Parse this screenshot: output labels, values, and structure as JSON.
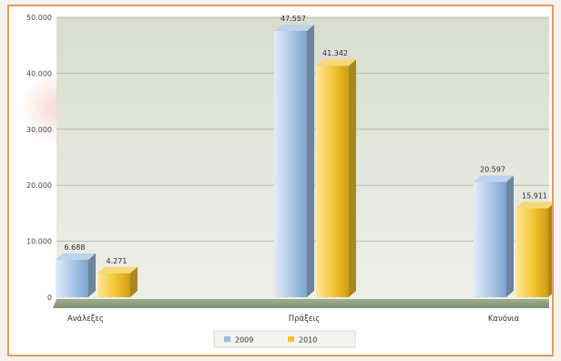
{
  "chart_data": {
    "type": "bar",
    "categories": [
      "Ανάλεξες",
      "Πράξεις",
      "Κανόνια"
    ],
    "series": [
      {
        "name": "2009",
        "values": [
          6688,
          47557,
          20597
        ],
        "color": "#9bbce0"
      },
      {
        "name": "2010",
        "values": [
          4271,
          41342,
          15911
        ],
        "color": "#f2c230"
      }
    ],
    "data_labels": [
      [
        "6.688",
        "47.557",
        "20.597"
      ],
      [
        "4.271",
        "41.342",
        "15.911"
      ]
    ],
    "ylim": [
      0,
      50000
    ],
    "yticks": [
      0,
      10000,
      20000,
      30000,
      40000,
      50000
    ],
    "ytick_labels": [
      "0",
      "10.000",
      "20.000",
      "30.000",
      "40.000",
      "50.000"
    ],
    "legend_position": "bottom",
    "grid": true,
    "title": "",
    "xlabel": "",
    "ylabel": ""
  }
}
